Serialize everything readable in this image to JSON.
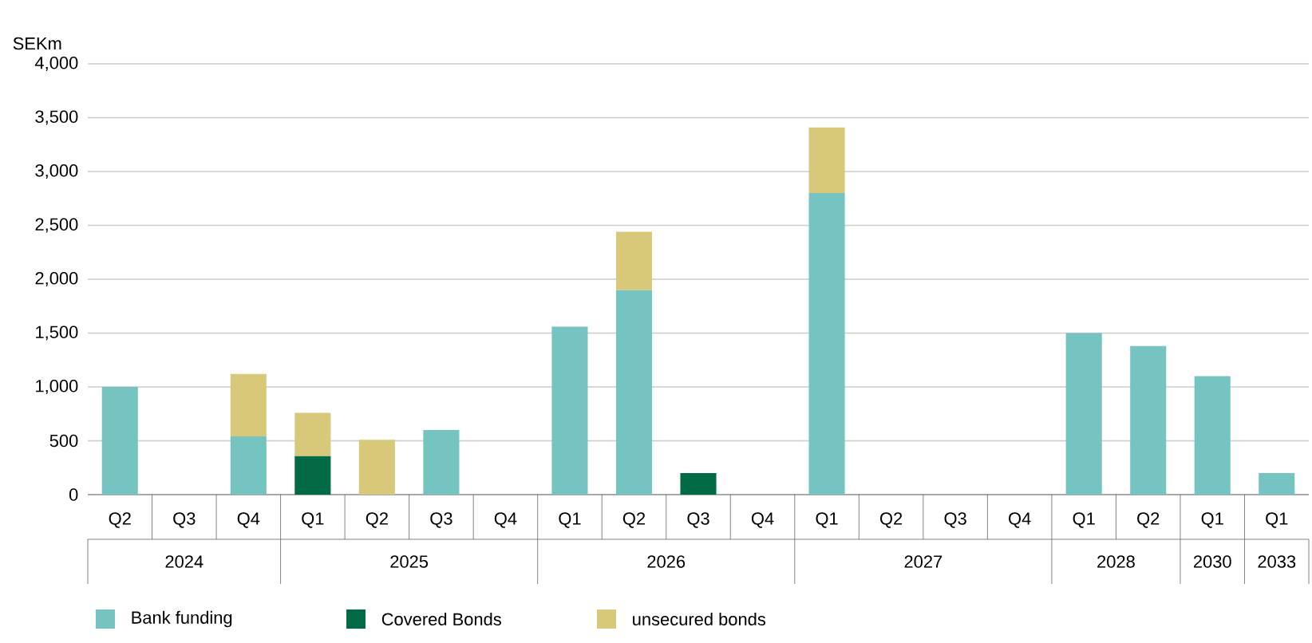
{
  "chart_data": {
    "type": "bar",
    "stacked": true,
    "ylabel": "SEKm",
    "categories": [
      "Q2",
      "Q3",
      "Q4",
      "Q1",
      "Q2",
      "Q3",
      "Q4",
      "Q1",
      "Q2",
      "Q3",
      "Q4",
      "Q1",
      "Q2",
      "Q3",
      "Q4",
      "Q1",
      "Q2",
      "Q1",
      "Q1"
    ],
    "annotations": [
      "2024",
      "2025",
      "2026",
      "2027",
      "2028",
      "2030",
      "2033"
    ],
    "series": [
      {
        "name": "Bank funding",
        "color": "#76c4c2",
        "values": [
          1000,
          null,
          540,
          null,
          null,
          600,
          null,
          1560,
          1900,
          null,
          null,
          2800,
          null,
          null,
          null,
          1500,
          1380,
          1100,
          200
        ]
      },
      {
        "name": "Covered Bonds",
        "color": "#006b45",
        "values": [
          null,
          null,
          null,
          360,
          null,
          null,
          null,
          null,
          null,
          200,
          null,
          null,
          null,
          null,
          null,
          null,
          null,
          null,
          null
        ]
      },
      {
        "name": "unsecured bonds",
        "color": "#d8c97a",
        "values": [
          null,
          null,
          580,
          400,
          510,
          null,
          null,
          null,
          540,
          null,
          null,
          610,
          null,
          null,
          null,
          null,
          null,
          null,
          null
        ]
      }
    ],
    "ylim": [
      0,
      4000
    ],
    "yticks": [
      {
        "value": 0,
        "label": "0"
      },
      {
        "value": 500,
        "label": "500"
      },
      {
        "value": 1000,
        "label": "1,000"
      },
      {
        "value": 1500,
        "label": "1,500"
      },
      {
        "value": 2000,
        "label": "2,000"
      },
      {
        "value": 2500,
        "label": "2,500"
      },
      {
        "value": 3000,
        "label": "3,000"
      },
      {
        "value": 3500,
        "label": "3,500"
      },
      {
        "value": 4000,
        "label": "4,000"
      }
    ],
    "grid": "y",
    "legend": "bottom"
  }
}
